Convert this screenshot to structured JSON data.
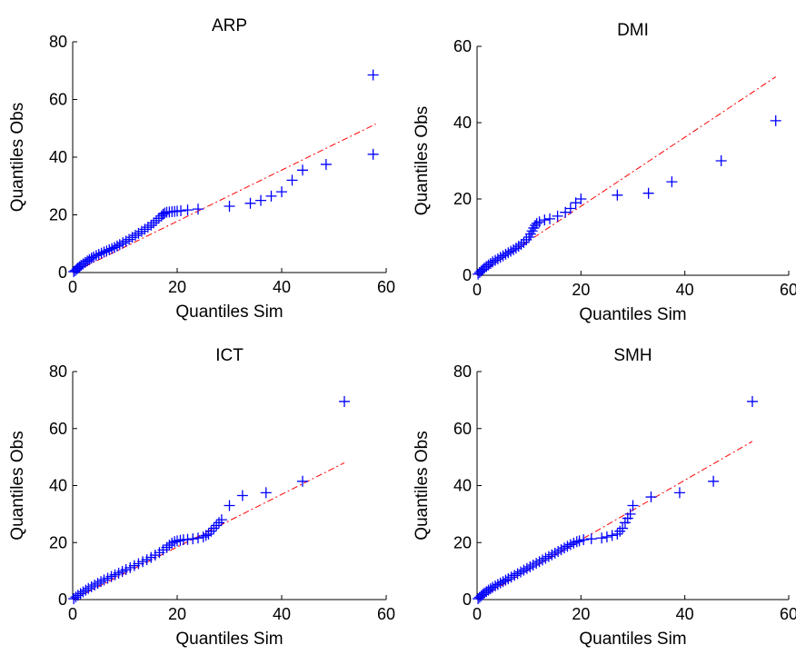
{
  "figure": {
    "marker_color": "#0000ff",
    "reference_line_color": "#ff0000",
    "background": "#ffffff"
  },
  "chart_data": [
    {
      "type": "scatter",
      "title": "ARP",
      "xlabel": "Quantiles Sim",
      "ylabel": "Quantiles Obs",
      "xlim": [
        0,
        60
      ],
      "ylim": [
        0,
        80
      ],
      "xticks": [
        0,
        20,
        40,
        60
      ],
      "yticks": [
        0,
        20,
        40,
        60,
        80
      ],
      "grid": false,
      "points": {
        "x": [
          0.2,
          0.5,
          0.8,
          1.0,
          1.3,
          1.6,
          2.0,
          2.4,
          2.8,
          3.2,
          3.6,
          4.0,
          4.5,
          5.0,
          5.5,
          6.0,
          6.5,
          7.0,
          7.5,
          8.0,
          8.5,
          9.0,
          9.6,
          10.2,
          10.8,
          11.4,
          12.0,
          12.6,
          13.2,
          13.8,
          14.4,
          15.0,
          15.5,
          16.0,
          16.5,
          17.0,
          17.3,
          17.6,
          18.0,
          18.5,
          19.0,
          19.5,
          20.0,
          20.7,
          22.0,
          24.0,
          30.0,
          34.0,
          36.0,
          38.0,
          40.0,
          42.0,
          44.0,
          48.5,
          57.5,
          57.5
        ],
        "y": [
          0.3,
          0.7,
          1.2,
          1.6,
          2.0,
          2.5,
          3.0,
          3.5,
          4.0,
          4.5,
          5.0,
          5.4,
          5.9,
          6.3,
          6.7,
          7.1,
          7.5,
          7.9,
          8.3,
          8.7,
          9.2,
          9.7,
          10.3,
          10.9,
          11.5,
          12.2,
          12.9,
          13.6,
          14.3,
          15.0,
          15.7,
          16.4,
          17.2,
          18.0,
          18.8,
          19.6,
          20.2,
          20.6,
          20.9,
          21.0,
          21.1,
          21.2,
          21.3,
          21.4,
          21.7,
          22.0,
          23.0,
          24.0,
          25.0,
          26.5,
          28.0,
          32.0,
          35.5,
          37.5,
          41.0,
          68.5
        ]
      },
      "reference_line": {
        "x": [
          0,
          58
        ],
        "y": [
          0,
          51.5
        ]
      }
    },
    {
      "type": "scatter",
      "title": "DMI",
      "xlabel": "Quantiles Sim",
      "ylabel": "Quantiles Obs",
      "xlim": [
        0,
        60
      ],
      "ylim": [
        0,
        60
      ],
      "xticks": [
        0,
        20,
        40,
        60
      ],
      "yticks": [
        0,
        20,
        40,
        60
      ],
      "grid": false,
      "points": {
        "x": [
          0.2,
          0.5,
          0.8,
          1.1,
          1.4,
          1.8,
          2.2,
          2.6,
          3.0,
          3.5,
          4.0,
          4.5,
          5.0,
          5.5,
          6.0,
          6.5,
          7.0,
          7.5,
          8.0,
          8.5,
          9.0,
          9.5,
          10.0,
          10.3,
          10.6,
          10.9,
          11.2,
          11.5,
          12.0,
          13.0,
          14.0,
          15.5,
          17.0,
          18.0,
          19.0,
          20.0,
          27.0,
          33.0,
          37.5,
          47.0,
          57.5
        ],
        "y": [
          0.3,
          0.7,
          1.1,
          1.5,
          1.9,
          2.3,
          2.7,
          3.1,
          3.5,
          3.9,
          4.3,
          4.7,
          5.1,
          5.5,
          5.9,
          6.3,
          6.7,
          7.1,
          7.6,
          8.1,
          8.6,
          9.3,
          10.0,
          10.8,
          11.6,
          12.4,
          13.1,
          13.6,
          14.0,
          14.5,
          14.8,
          15.5,
          16.5,
          17.5,
          19.0,
          20.0,
          21.0,
          21.5,
          24.5,
          30.0,
          40.5
        ]
      },
      "reference_line": {
        "x": [
          0,
          57.5
        ],
        "y": [
          0,
          52.0
        ]
      }
    },
    {
      "type": "scatter",
      "title": "ICT",
      "xlabel": "Quantiles Sim",
      "ylabel": "Quantiles Obs",
      "xlim": [
        0,
        60
      ],
      "ylim": [
        0,
        80
      ],
      "xticks": [
        0,
        20,
        40,
        60
      ],
      "yticks": [
        0,
        20,
        40,
        60,
        80
      ],
      "grid": false,
      "points": {
        "x": [
          0.2,
          0.6,
          1.0,
          1.5,
          2.0,
          2.5,
          3.0,
          3.6,
          4.2,
          4.8,
          5.4,
          6.0,
          6.7,
          7.4,
          8.1,
          8.8,
          9.5,
          10.2,
          11.0,
          11.8,
          12.6,
          13.4,
          14.2,
          15.0,
          15.8,
          16.6,
          17.3,
          18.0,
          18.5,
          19.0,
          19.5,
          20.0,
          20.6,
          21.2,
          22.0,
          23.0,
          24.0,
          25.0,
          25.5,
          26.0,
          26.5,
          27.0,
          27.5,
          28.0,
          28.5,
          30.0,
          32.5,
          37.0,
          44.0,
          52.0
        ],
        "y": [
          0.3,
          0.9,
          1.5,
          2.1,
          2.7,
          3.3,
          3.9,
          4.5,
          5.1,
          5.7,
          6.3,
          6.9,
          7.5,
          8.1,
          8.7,
          9.3,
          9.9,
          10.5,
          11.2,
          11.9,
          12.6,
          13.3,
          14.0,
          14.8,
          15.6,
          16.5,
          17.4,
          18.3,
          19.1,
          19.8,
          20.3,
          20.6,
          20.8,
          21.0,
          21.1,
          21.3,
          21.6,
          22.0,
          22.5,
          23.0,
          24.0,
          25.0,
          26.0,
          27.0,
          28.0,
          33.0,
          36.5,
          37.5,
          41.5,
          69.5
        ]
      },
      "reference_line": {
        "x": [
          0,
          52
        ],
        "y": [
          0,
          48.0
        ]
      }
    },
    {
      "type": "scatter",
      "title": "SMH",
      "xlabel": "Quantiles Sim",
      "ylabel": "Quantiles Obs",
      "xlim": [
        0,
        60
      ],
      "ylim": [
        0,
        80
      ],
      "xticks": [
        0,
        20,
        40,
        60
      ],
      "yticks": [
        0,
        20,
        40,
        60,
        80
      ],
      "grid": false,
      "points": {
        "x": [
          0.2,
          0.5,
          0.8,
          1.1,
          1.4,
          1.8,
          2.2,
          2.6,
          3.0,
          3.5,
          4.0,
          4.5,
          5.0,
          5.5,
          6.0,
          6.6,
          7.2,
          7.8,
          8.4,
          9.0,
          9.6,
          10.2,
          10.8,
          11.4,
          12.0,
          12.6,
          13.2,
          13.8,
          14.4,
          15.0,
          15.6,
          16.2,
          16.8,
          17.4,
          18.0,
          18.6,
          19.2,
          19.7,
          20.5,
          22.0,
          24.0,
          25.0,
          26.0,
          27.0,
          27.5,
          28.0,
          28.5,
          29.0,
          29.5,
          30.0,
          33.5,
          39.0,
          45.5,
          53.0
        ],
        "y": [
          0.3,
          0.8,
          1.3,
          1.8,
          2.3,
          2.8,
          3.3,
          3.8,
          4.3,
          4.8,
          5.3,
          5.8,
          6.3,
          6.8,
          7.3,
          7.9,
          8.5,
          9.1,
          9.7,
          10.3,
          10.9,
          11.5,
          12.1,
          12.7,
          13.3,
          13.9,
          14.5,
          15.1,
          15.7,
          16.3,
          16.9,
          17.5,
          18.1,
          18.7,
          19.3,
          19.8,
          20.3,
          20.6,
          21.0,
          21.3,
          21.6,
          22.0,
          22.5,
          23.0,
          24.0,
          25.0,
          27.0,
          28.5,
          30.0,
          33.0,
          36.0,
          37.5,
          41.5,
          69.5
        ]
      },
      "reference_line": {
        "x": [
          0,
          53
        ],
        "y": [
          0,
          55.5
        ]
      }
    }
  ]
}
